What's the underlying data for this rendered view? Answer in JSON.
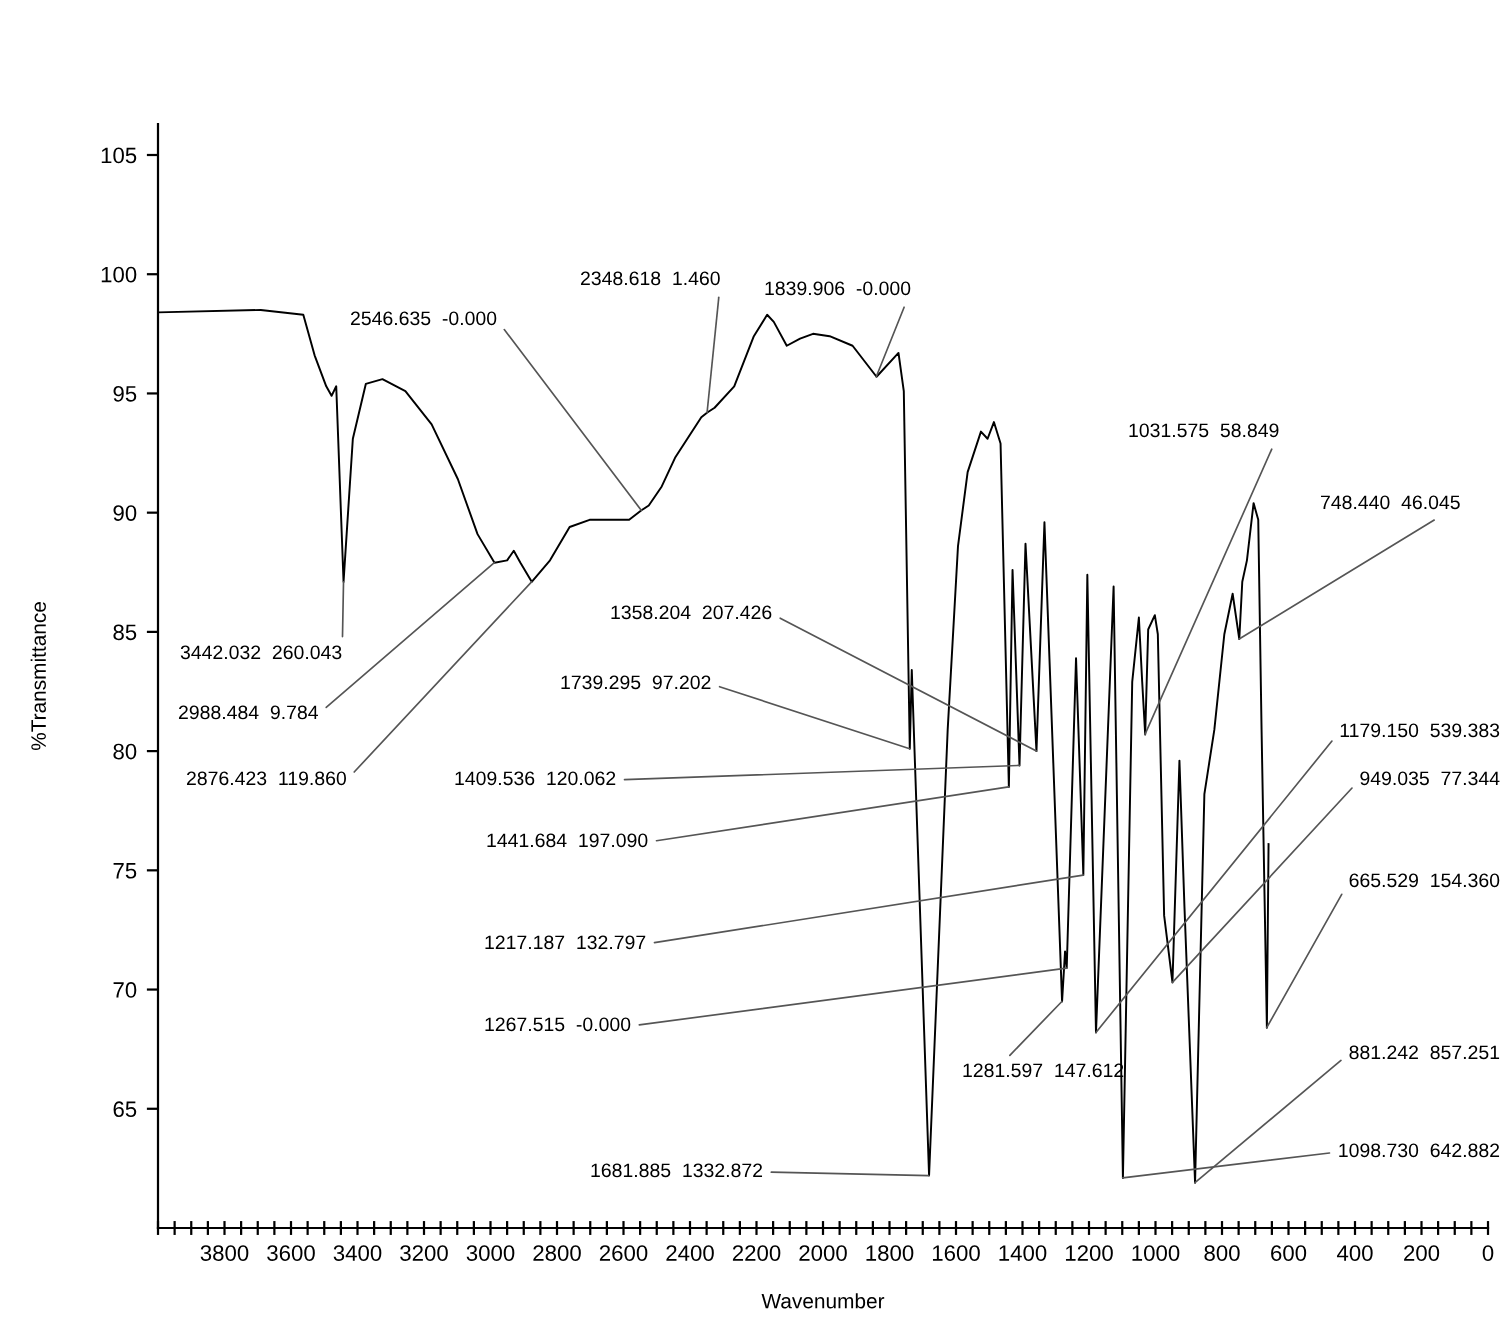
{
  "chart_data": {
    "type": "line",
    "xlabel": "Wavenumber",
    "ylabel": "%Transmittance",
    "xlim": [
      4000,
      0
    ],
    "ylim": [
      60,
      106.3
    ],
    "xticks": [
      {
        "value": 4000,
        "label": null
      },
      {
        "value": 3950,
        "label": null
      },
      {
        "value": 3900,
        "label": null
      },
      {
        "value": 3850,
        "label": null
      },
      3800,
      {
        "value": 3750,
        "label": null
      },
      {
        "value": 3700,
        "label": null
      },
      {
        "value": 3650,
        "label": null
      },
      3600,
      {
        "value": 3550,
        "label": null
      },
      {
        "value": 3500,
        "label": null
      },
      {
        "value": 3450,
        "label": null
      },
      3400,
      {
        "value": 3350,
        "label": null
      },
      {
        "value": 3300,
        "label": null
      },
      {
        "value": 3250,
        "label": null
      },
      3200,
      {
        "value": 3150,
        "label": null
      },
      {
        "value": 3100,
        "label": null
      },
      {
        "value": 3050,
        "label": null
      },
      3000,
      {
        "value": 2950,
        "label": null
      },
      {
        "value": 2900,
        "label": null
      },
      {
        "value": 2850,
        "label": null
      },
      2800,
      {
        "value": 2750,
        "label": null
      },
      {
        "value": 2700,
        "label": null
      },
      {
        "value": 2650,
        "label": null
      },
      2600,
      {
        "value": 2550,
        "label": null
      },
      {
        "value": 2500,
        "label": null
      },
      {
        "value": 2450,
        "label": null
      },
      2400,
      {
        "value": 2350,
        "label": null
      },
      {
        "value": 2300,
        "label": null
      },
      {
        "value": 2250,
        "label": null
      },
      2200,
      {
        "value": 2150,
        "label": null
      },
      {
        "value": 2100,
        "label": null
      },
      {
        "value": 2050,
        "label": null
      },
      2000,
      {
        "value": 1950,
        "label": null
      },
      {
        "value": 1900,
        "label": null
      },
      {
        "value": 1850,
        "label": null
      },
      1800,
      {
        "value": 1750,
        "label": null
      },
      {
        "value": 1700,
        "label": null
      },
      {
        "value": 1650,
        "label": null
      },
      1600,
      {
        "value": 1550,
        "label": null
      },
      {
        "value": 1500,
        "label": null
      },
      {
        "value": 1450,
        "label": null
      },
      1400,
      {
        "value": 1350,
        "label": null
      },
      {
        "value": 1300,
        "label": null
      },
      {
        "value": 1250,
        "label": null
      },
      1200,
      {
        "value": 1150,
        "label": null
      },
      {
        "value": 1100,
        "label": null
      },
      {
        "value": 1050,
        "label": null
      },
      1000,
      {
        "value": 950,
        "label": null
      },
      {
        "value": 900,
        "label": null
      },
      {
        "value": 850,
        "label": null
      },
      800,
      {
        "value": 750,
        "label": null
      },
      {
        "value": 700,
        "label": null
      },
      {
        "value": 650,
        "label": null
      },
      600,
      {
        "value": 550,
        "label": null
      },
      {
        "value": 500,
        "label": null
      },
      {
        "value": 450,
        "label": null
      },
      400,
      {
        "value": 350,
        "label": null
      },
      {
        "value": 300,
        "label": null
      },
      {
        "value": 250,
        "label": null
      },
      200,
      {
        "value": 150,
        "label": null
      },
      {
        "value": 100,
        "label": null
      },
      {
        "value": 50,
        "label": null
      },
      0
    ],
    "yticks": [
      65,
      70,
      75,
      80,
      85,
      90,
      95,
      100,
      105
    ],
    "grid": false,
    "marker": "none",
    "line_style": "solid",
    "series": [
      {
        "color": "#000000",
        "x": [
          4000,
          3691,
          3563,
          3529,
          3494,
          3478,
          3464,
          3442,
          3414,
          3375,
          3325,
          3256,
          3177,
          3098,
          3039,
          2988,
          2950,
          2930,
          2910,
          2876,
          2821,
          2762,
          2702,
          2623,
          2583,
          2546,
          2524,
          2485,
          2445,
          2366,
          2348,
          2326,
          2267,
          2208,
          2168,
          2148,
          2109,
          2069,
          2030,
          1980,
          1911,
          1839,
          1773,
          1757,
          1739,
          1733,
          1681,
          1625,
          1594,
          1565,
          1525,
          1505,
          1486,
          1466,
          1441,
          1430,
          1409,
          1391,
          1358,
          1334,
          1281,
          1272,
          1267,
          1239,
          1217,
          1205,
          1179,
          1126,
          1098,
          1070,
          1050,
          1040,
          1031,
          1022,
          1002,
          993,
          974,
          949,
          928,
          913,
          881,
          853,
          823,
          793,
          768,
          748,
          739,
          725,
          705,
          691,
          681,
          665,
          660
        ],
        "values": [
          98.4,
          98.5,
          98.3,
          96.6,
          95.3,
          94.9,
          95.3,
          87.1,
          93.1,
          95.4,
          95.6,
          95.1,
          93.7,
          91.4,
          89.1,
          87.9,
          88.0,
          88.4,
          87.9,
          87.1,
          88.0,
          89.4,
          89.7,
          89.7,
          89.7,
          90.1,
          90.3,
          91.1,
          92.3,
          94.0,
          94.2,
          94.4,
          95.3,
          97.4,
          98.3,
          98.0,
          97.0,
          97.3,
          97.5,
          97.4,
          97.0,
          95.7,
          96.7,
          95.1,
          80.1,
          83.4,
          62.2,
          80.9,
          88.6,
          91.7,
          93.4,
          93.1,
          93.8,
          92.9,
          78.5,
          87.6,
          79.4,
          88.7,
          80.0,
          89.6,
          69.5,
          71.6,
          70.9,
          83.9,
          74.8,
          87.4,
          68.2,
          86.9,
          62.1,
          82.9,
          85.6,
          82.9,
          80.7,
          85.1,
          85.7,
          84.9,
          73.1,
          70.3,
          79.6,
          73.5,
          61.9,
          78.2,
          80.9,
          84.9,
          86.6,
          84.7,
          87.1,
          88.0,
          90.4,
          89.7,
          80.9,
          68.4,
          76.1
        ]
      }
    ],
    "annotations": [
      {
        "text": "3442.032  260.043",
        "x": 3442.032,
        "y": 87.1
      },
      {
        "text": "2988.484  9.784",
        "x": 2988.484,
        "y": 87.9
      },
      {
        "text": "2876.423  119.860",
        "x": 2876.423,
        "y": 87.1
      },
      {
        "text": "2546.635  -0.000",
        "x": 2546.635,
        "y": 90.1
      },
      {
        "text": "2348.618  1.460",
        "x": 2348.618,
        "y": 94.2
      },
      {
        "text": "1839.906  -0.000",
        "x": 1839.906,
        "y": 95.7
      },
      {
        "text": "1358.204  207.426",
        "x": 1358.204,
        "y": 80.0
      },
      {
        "text": "1739.295  97.202",
        "x": 1739.295,
        "y": 80.1
      },
      {
        "text": "1409.536  120.062",
        "x": 1409.536,
        "y": 79.4
      },
      {
        "text": "1441.684  197.090",
        "x": 1441.684,
        "y": 78.5
      },
      {
        "text": "1217.187  132.797",
        "x": 1217.187,
        "y": 74.8
      },
      {
        "text": "1267.515  -0.000",
        "x": 1267.515,
        "y": 70.9
      },
      {
        "text": "1681.885  1332.872",
        "x": 1681.885,
        "y": 62.2
      },
      {
        "text": "1031.575  58.849",
        "x": 1031.575,
        "y": 80.7
      },
      {
        "text": "748.440  46.045",
        "x": 748.44,
        "y": 84.7
      },
      {
        "text": "1179.150  539.383",
        "x": 1179.15,
        "y": 68.2
      },
      {
        "text": "949.035  77.344",
        "x": 949.035,
        "y": 70.3
      },
      {
        "text": "665.529  154.360",
        "x": 665.529,
        "y": 68.4
      },
      {
        "text": "1281.597  147.612",
        "x": 1281.597,
        "y": 69.5
      },
      {
        "text": "881.242  857.251",
        "x": 881.242,
        "y": 61.9
      },
      {
        "text": "1098.730  642.882",
        "x": 1098.73,
        "y": 62.1
      }
    ]
  }
}
